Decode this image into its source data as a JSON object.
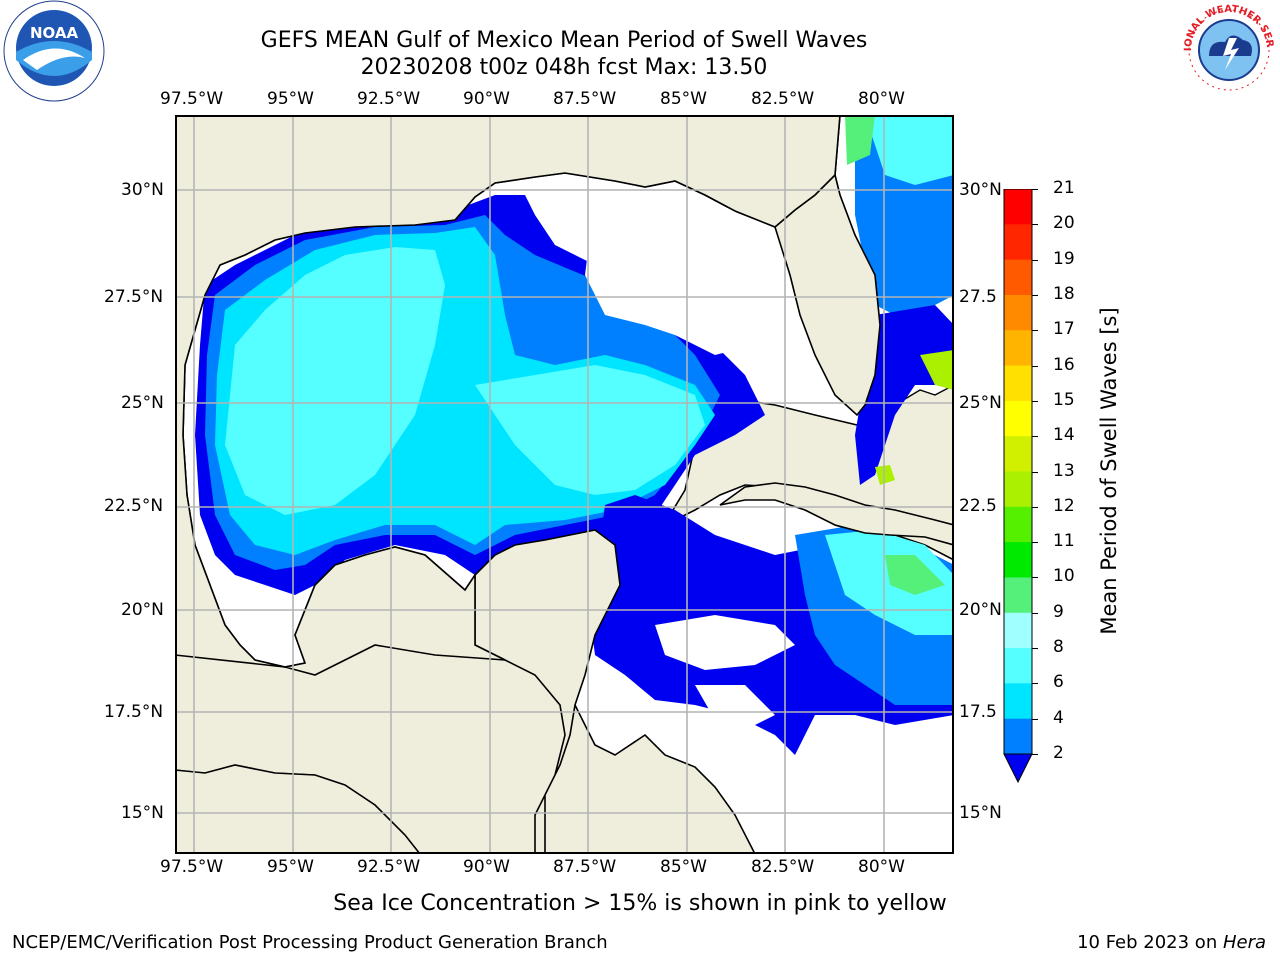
{
  "title": {
    "line1": "GEFS MEAN Gulf of Mexico Mean Period of Swell Waves",
    "line2": "20230208 t00z 048h fcst   Max: 13.50"
  },
  "map": {
    "lon_ticks": [
      "97.5°W",
      "95°W",
      "92.5°W",
      "90°W",
      "87.5°W",
      "85°W",
      "82.5°W",
      "80°W"
    ],
    "lat_ticks_left": [
      "30°N",
      "27.5°N",
      "25°N",
      "22.5°N",
      "20°N",
      "17.5°N",
      "15°N"
    ],
    "lat_ticks_right": [
      "30°N",
      "27.5",
      "25°N",
      "22.5",
      "20°N",
      "17.5",
      "15°N"
    ],
    "extent": {
      "lon": [
        -98,
        -78.2
      ],
      "lat": [
        14,
        31.8
      ]
    },
    "land_color": "#efeedc",
    "grid_color": "#b4b4b4"
  },
  "colorbar": {
    "label": "Mean Period of Swell Waves [s]",
    "levels": [
      "2",
      "4",
      "6",
      "8",
      "9",
      "10",
      "11",
      "12",
      "13",
      "14",
      "15",
      "16",
      "17",
      "18",
      "19",
      "20",
      "21"
    ],
    "colors": [
      "#0000f0",
      "#0080ff",
      "#00e5ff",
      "#55ffff",
      "#a0ffff",
      "#55f07a",
      "#00ea00",
      "#55f000",
      "#aaf000",
      "#d0f000",
      "#ffff00",
      "#ffe000",
      "#ffb400",
      "#ff8a00",
      "#ff5a00",
      "#ff2600",
      "#ff0000"
    ]
  },
  "note": "Sea Ice Concentration > 15% is shown in pink to yellow",
  "footer": {
    "left": "NCEP/EMC/Verification Post Processing Product Generation Branch",
    "right_date": "10 Feb 2023 on ",
    "right_host": "Hera"
  },
  "logos": {
    "noaa": "NOAA",
    "nws": "NATIONAL WEATHER SERVICE"
  }
}
